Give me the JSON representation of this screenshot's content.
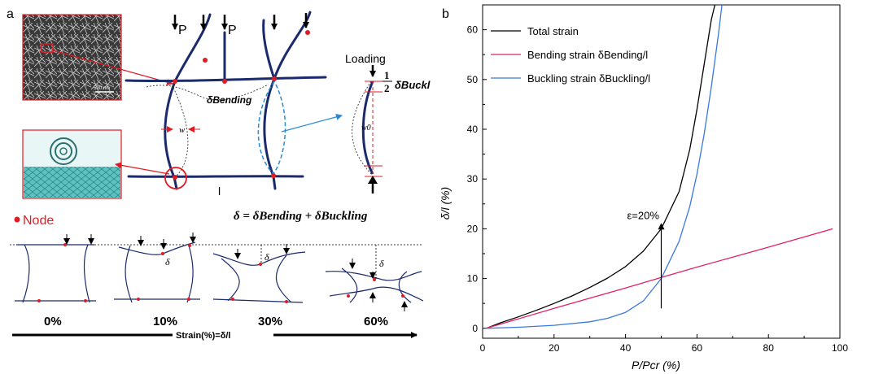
{
  "panel_a": {
    "label": "a",
    "sem_scale": "500 nm",
    "load_label_1": "P",
    "load_label_2": "P",
    "loading_label": "Loading",
    "half_fraction_num": "1",
    "half_fraction_den": "2",
    "buckling_delta": "δBuckl",
    "bending_delta": "δBending",
    "width_label": "w",
    "width_label_2": "w0",
    "length_label": "l",
    "equation": "δ = δBending + δBuckling",
    "node_legend": "Node",
    "delta_symbol": "δ",
    "stages": [
      "0%",
      "10%",
      "30%",
      "60%"
    ],
    "strain_axis": "Strain(%)=δ/l",
    "colors": {
      "fiber": "#1b2a6b",
      "node": "#e01b24",
      "arrow_blue": "#2a8ad4",
      "inset": "#3ab0b0"
    }
  },
  "panel_b": {
    "label": "b",
    "xlabel": "P/Pcr (%)",
    "ylabel": "δ/l (%)",
    "annotation": "ε=20%"
  },
  "chart_data": {
    "type": "line",
    "xlim": [
      0,
      100
    ],
    "ylim": [
      -2,
      65
    ],
    "xticks": [
      0,
      20,
      40,
      60,
      80,
      100
    ],
    "yticks": [
      0,
      10,
      20,
      30,
      40,
      50,
      60
    ],
    "grid": false,
    "legend_position": "top-left",
    "series": [
      {
        "name": "Total strain",
        "color": "#000000",
        "x": [
          1,
          5,
          10,
          15,
          20,
          25,
          30,
          35,
          40,
          45,
          50,
          55,
          58,
          60,
          62,
          64,
          65
        ],
        "y": [
          0,
          1.1,
          2.3,
          3.6,
          5.0,
          6.5,
          8.2,
          10.1,
          12.4,
          15.5,
          20.0,
          27.5,
          36.0,
          44.0,
          53.0,
          62.0,
          65.0
        ]
      },
      {
        "name": "Bending strain δBending/l",
        "color": "#e0245e",
        "x": [
          1,
          20,
          40,
          50,
          60,
          80,
          98
        ],
        "y": [
          0,
          4,
          8.1,
          10.2,
          12.3,
          16.3,
          20
        ]
      },
      {
        "name": "Buckling strain δBuckling/l",
        "color": "#3a78e0",
        "x": [
          1,
          10,
          20,
          30,
          35,
          40,
          45,
          50,
          55,
          58,
          60,
          62,
          64,
          66,
          67
        ],
        "y": [
          0,
          0.2,
          0.6,
          1.3,
          2.0,
          3.2,
          5.5,
          10.0,
          17.5,
          24.5,
          31.0,
          39.0,
          48.5,
          59.0,
          65.0
        ]
      }
    ],
    "annotations": [
      {
        "text": "ε=20%",
        "x": 50,
        "y_from": 4,
        "y_to": 21
      }
    ]
  }
}
